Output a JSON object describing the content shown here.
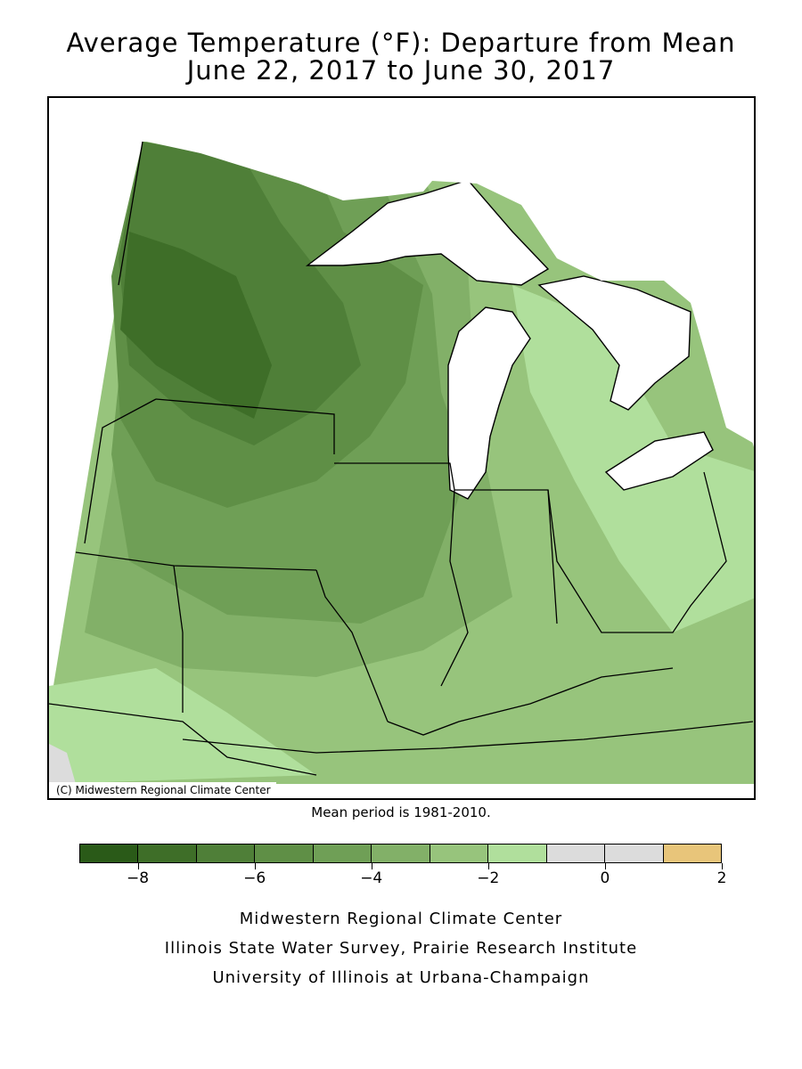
{
  "title": {
    "line1": "Average Temperature (°F): Departure from Mean",
    "line2": "June 22, 2017 to June 30, 2017"
  },
  "map": {
    "copyright": "(C) Midwestern Regional Climate Center",
    "region": "Midwest United States",
    "water_color": "#ffffff"
  },
  "mean_period": "Mean period is 1981-2010.",
  "legend": {
    "colors": [
      "#2a5a18",
      "#3e6e28",
      "#4f7f38",
      "#5f8f46",
      "#6f9f56",
      "#82b068",
      "#97c47c",
      "#b0df9c",
      "#dcdcdc",
      "#dcdcdc",
      "#e8c57a"
    ],
    "ticks": [
      "−8",
      "−6",
      "−4",
      "−2",
      "0",
      "2"
    ],
    "tick_values": [
      -8,
      -6,
      -4,
      -2,
      0,
      2
    ]
  },
  "credits": {
    "line1": "Midwestern Regional Climate Center",
    "line2": "Illinois State Water Survey, Prairie Research Institute",
    "line3": "University of Illinois at Urbana-Champaign"
  }
}
